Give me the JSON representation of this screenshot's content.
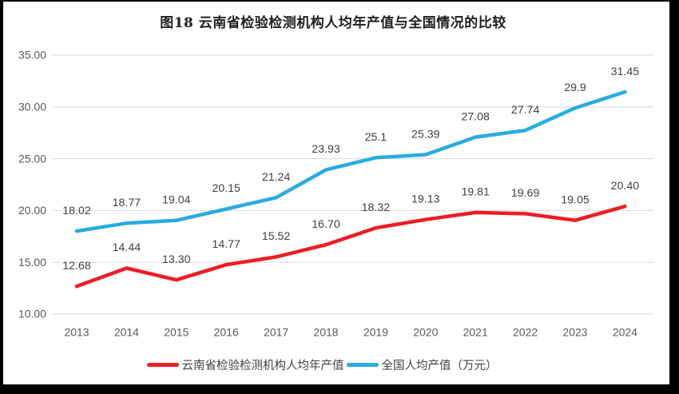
{
  "frame": {
    "outer_bg": "#000000",
    "chart_bg": "#ffffff"
  },
  "chart_data": {
    "type": "line",
    "title": "图18 云南省检验检测机构人均年产值与全国情况的比较",
    "categories": [
      "2013",
      "2014",
      "2015",
      "2016",
      "2017",
      "2018",
      "2019",
      "2020",
      "2021",
      "2022",
      "2023",
      "2024"
    ],
    "series": [
      {
        "name": "云南省检验检测机构人均年产值",
        "color": "#EE1C25",
        "values": [
          12.68,
          14.44,
          13.3,
          14.77,
          15.52,
          16.7,
          18.32,
          19.13,
          19.81,
          19.69,
          19.05,
          20.4
        ],
        "labels": [
          "12.68",
          "14.44",
          "13.30",
          "14.77",
          "15.52",
          "16.70",
          "18.32",
          "19.13",
          "19.81",
          "19.69",
          "19.05",
          "20.40"
        ]
      },
      {
        "name": "全国人均产值（万元）",
        "color": "#29ABE2",
        "values": [
          18.02,
          18.77,
          19.04,
          20.15,
          21.24,
          23.93,
          25.1,
          25.39,
          27.08,
          27.74,
          29.9,
          31.45
        ],
        "labels": [
          "18.02",
          "18.77",
          "19.04",
          "20.15",
          "21.24",
          "23.93",
          "25.1",
          "25.39",
          "27.08",
          "27.74",
          "29.9",
          "31.45"
        ]
      }
    ],
    "ylim": [
      10,
      35
    ],
    "ytick_labels": [
      "35.00",
      "30.00",
      "25.00",
      "20.00",
      "15.00",
      "10.00"
    ],
    "ytick_values": [
      35,
      30,
      25,
      20,
      15,
      10
    ],
    "xlabel": "",
    "ylabel": "",
    "grid": true,
    "legend_position": "bottom",
    "style": {
      "gridline_color": "#D9D9D9",
      "axis_label_color": "#595959",
      "data_label_color": "#3F3F3F",
      "title_color": "#1F1F1F",
      "line_width": 4.5
    }
  }
}
